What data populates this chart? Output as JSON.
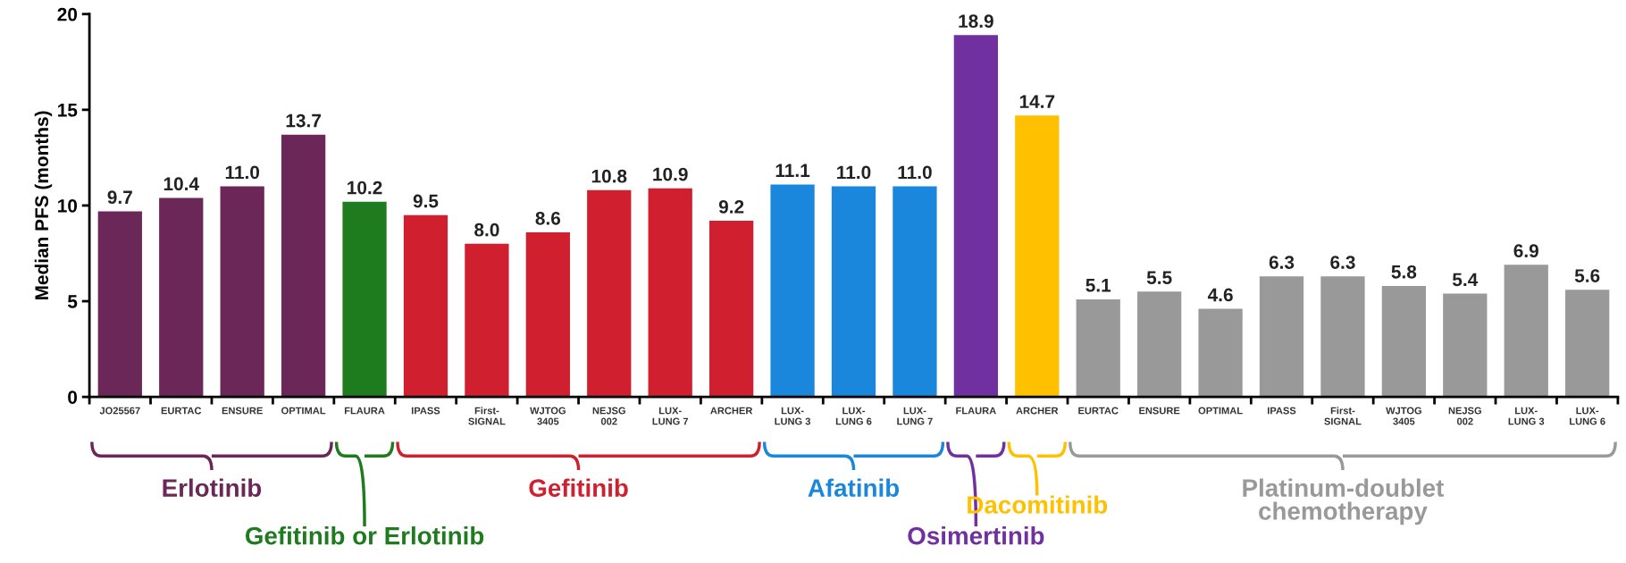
{
  "chart_data": {
    "type": "bar",
    "ylabel": "Median PFS (months)",
    "categories": [
      "JO25567",
      "EURTAC",
      "ENSURE",
      "OPTIMAL",
      "FLAURA",
      "IPASS",
      "First-\nSIGNAL",
      "WJTOG\n3405",
      "NEJSG\n002",
      "LUX-\nLUNG 7",
      "ARCHER",
      "LUX-\nLUNG 3",
      "LUX-\nLUNG 6",
      "LUX-\nLUNG 7",
      "FLAURA",
      "ARCHER",
      "EURTAC",
      "ENSURE",
      "OPTIMAL",
      "IPASS",
      "First-\nSIGNAL",
      "WJTOG\n3405",
      "NEJSG\n002",
      "LUX-\nLUNG 3",
      "LUX-\nLUNG 6"
    ],
    "series": [
      {
        "name": "Erlotinib",
        "color": "#6b2757",
        "values": [
          9.7,
          10.4,
          11.0,
          13.7,
          null,
          null,
          null,
          null,
          null,
          null,
          null,
          null,
          null,
          null,
          null,
          null,
          null,
          null,
          null,
          null,
          null,
          null,
          null,
          null,
          null
        ],
        "value_labels": [
          "9.7",
          "10.4",
          "11.0",
          "13.7",
          null,
          null,
          null,
          null,
          null,
          null,
          null,
          null,
          null,
          null,
          null,
          null,
          null,
          null,
          null,
          null,
          null,
          null,
          null,
          null,
          null
        ]
      },
      {
        "name": "Gefitinib or Erlotinib",
        "color": "#1e7b1e",
        "values": [
          null,
          null,
          null,
          null,
          10.2,
          null,
          null,
          null,
          null,
          null,
          null,
          null,
          null,
          null,
          null,
          null,
          null,
          null,
          null,
          null,
          null,
          null,
          null,
          null,
          null
        ],
        "value_labels": [
          null,
          null,
          null,
          null,
          "10.2",
          null,
          null,
          null,
          null,
          null,
          null,
          null,
          null,
          null,
          null,
          null,
          null,
          null,
          null,
          null,
          null,
          null,
          null,
          null,
          null
        ]
      },
      {
        "name": "Gefitinib",
        "color": "#d01f2e",
        "values": [
          null,
          null,
          null,
          null,
          null,
          9.5,
          8.0,
          8.6,
          10.8,
          10.9,
          9.2,
          null,
          null,
          null,
          null,
          null,
          null,
          null,
          null,
          null,
          null,
          null,
          null,
          null,
          null
        ],
        "value_labels": [
          null,
          null,
          null,
          null,
          null,
          "9.5",
          "8.0",
          "8.6",
          "10.8",
          "10.9",
          "9.2",
          null,
          null,
          null,
          null,
          null,
          null,
          null,
          null,
          null,
          null,
          null,
          null,
          null,
          null
        ]
      },
      {
        "name": "Afatinib",
        "color": "#1a87dc",
        "values": [
          null,
          null,
          null,
          null,
          null,
          null,
          null,
          null,
          null,
          null,
          null,
          11.1,
          11.0,
          11.0,
          null,
          null,
          null,
          null,
          null,
          null,
          null,
          null,
          null,
          null,
          null
        ],
        "value_labels": [
          null,
          null,
          null,
          null,
          null,
          null,
          null,
          null,
          null,
          null,
          null,
          "11.1",
          "11.0",
          "11.0",
          null,
          null,
          null,
          null,
          null,
          null,
          null,
          null,
          null,
          null,
          null
        ]
      },
      {
        "name": "Osimertinib",
        "color": "#7030a0",
        "values": [
          null,
          null,
          null,
          null,
          null,
          null,
          null,
          null,
          null,
          null,
          null,
          null,
          null,
          null,
          18.9,
          null,
          null,
          null,
          null,
          null,
          null,
          null,
          null,
          null,
          null
        ],
        "value_labels": [
          null,
          null,
          null,
          null,
          null,
          null,
          null,
          null,
          null,
          null,
          null,
          null,
          null,
          null,
          "18.9",
          null,
          null,
          null,
          null,
          null,
          null,
          null,
          null,
          null,
          null
        ]
      },
      {
        "name": "Dacomitinib",
        "color": "#ffc000",
        "values": [
          null,
          null,
          null,
          null,
          null,
          null,
          null,
          null,
          null,
          null,
          null,
          null,
          null,
          null,
          null,
          14.7,
          null,
          null,
          null,
          null,
          null,
          null,
          null,
          null,
          null
        ],
        "value_labels": [
          null,
          null,
          null,
          null,
          null,
          null,
          null,
          null,
          null,
          null,
          null,
          null,
          null,
          null,
          null,
          "14.7",
          null,
          null,
          null,
          null,
          null,
          null,
          null,
          null,
          null
        ]
      },
      {
        "name": "Platinum-doublet\nchemotherapy",
        "color": "#999999",
        "values": [
          null,
          null,
          null,
          null,
          null,
          null,
          null,
          null,
          null,
          null,
          null,
          null,
          null,
          null,
          null,
          null,
          5.1,
          5.5,
          4.6,
          6.3,
          6.3,
          5.8,
          5.4,
          6.9,
          5.6
        ],
        "value_labels": [
          null,
          null,
          null,
          null,
          null,
          null,
          null,
          null,
          null,
          null,
          null,
          null,
          null,
          null,
          null,
          null,
          "5.1",
          "5.5",
          "4.6",
          "6.3",
          "6.3",
          "5.8",
          "5.4",
          "6.9",
          "5.6"
        ]
      }
    ],
    "ylim": [
      0,
      20
    ],
    "yticks": [
      0,
      5,
      10,
      15,
      20
    ],
    "grid": false,
    "legend": "bottom"
  }
}
